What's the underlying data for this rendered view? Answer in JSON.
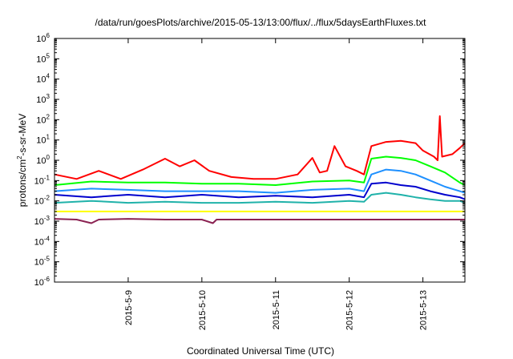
{
  "chart_data": {
    "type": "line",
    "title": "/data/run/goesPlots/archive/2015-05-13/13:00/flux/../flux/5daysEarthFluxes.txt",
    "xlabel": "Coordinated Universal Time (UTC)",
    "ylabel_parts": [
      "protons/cm",
      "2",
      "-s-sr-MeV"
    ],
    "ylabel": "protons/cm2-s-sr-MeV",
    "yscale": "log",
    "ylim": [
      1e-06,
      1000000.0
    ],
    "xlim": [
      0,
      5.57
    ],
    "x_unit": "days after 2015-05-08 00:00 UTC",
    "xticks": [
      {
        "x": 1,
        "label": "2015-5-9"
      },
      {
        "x": 2,
        "label": "2015-5-10"
      },
      {
        "x": 3,
        "label": "2015-5-11"
      },
      {
        "x": 4,
        "label": "2015-5-12"
      },
      {
        "x": 5,
        "label": "2015-5-13"
      }
    ],
    "yticks": [
      {
        "exp": -6
      },
      {
        "exp": -5
      },
      {
        "exp": -4
      },
      {
        "exp": -3
      },
      {
        "exp": -2
      },
      {
        "exp": -1
      },
      {
        "exp": 0
      },
      {
        "exp": 1
      },
      {
        "exp": 2
      },
      {
        "exp": 3
      },
      {
        "exp": 4
      },
      {
        "exp": 5
      },
      {
        "exp": 6
      }
    ],
    "series": [
      {
        "color": "#ff0000",
        "width": 2,
        "points": [
          [
            0.0,
            0.2
          ],
          [
            0.3,
            0.12
          ],
          [
            0.6,
            0.3
          ],
          [
            0.9,
            0.12
          ],
          [
            1.2,
            0.35
          ],
          [
            1.5,
            1.2
          ],
          [
            1.7,
            0.5
          ],
          [
            1.9,
            1.0
          ],
          [
            2.1,
            0.3
          ],
          [
            2.4,
            0.15
          ],
          [
            2.7,
            0.12
          ],
          [
            3.0,
            0.12
          ],
          [
            3.3,
            0.2
          ],
          [
            3.5,
            1.3
          ],
          [
            3.6,
            0.25
          ],
          [
            3.7,
            0.3
          ],
          [
            3.8,
            5.0
          ],
          [
            3.95,
            0.5
          ],
          [
            4.1,
            0.3
          ],
          [
            4.2,
            0.2
          ],
          [
            4.3,
            5.0
          ],
          [
            4.5,
            8.0
          ],
          [
            4.7,
            9.0
          ],
          [
            4.9,
            7.0
          ],
          [
            5.0,
            3.0
          ],
          [
            5.15,
            1.5
          ],
          [
            5.2,
            1.0
          ],
          [
            5.23,
            150
          ],
          [
            5.26,
            1.5
          ],
          [
            5.4,
            2.0
          ],
          [
            5.5,
            4.0
          ],
          [
            5.57,
            7.0
          ]
        ]
      },
      {
        "color": "#00ff00",
        "width": 2,
        "points": [
          [
            0.0,
            0.06
          ],
          [
            0.5,
            0.09
          ],
          [
            1.0,
            0.08
          ],
          [
            1.5,
            0.08
          ],
          [
            2.0,
            0.07
          ],
          [
            2.5,
            0.07
          ],
          [
            3.0,
            0.06
          ],
          [
            3.5,
            0.09
          ],
          [
            4.0,
            0.1
          ],
          [
            4.2,
            0.08
          ],
          [
            4.3,
            1.2
          ],
          [
            4.5,
            1.5
          ],
          [
            4.7,
            1.3
          ],
          [
            4.9,
            1.0
          ],
          [
            5.1,
            0.5
          ],
          [
            5.3,
            0.25
          ],
          [
            5.5,
            0.08
          ],
          [
            5.57,
            0.06
          ]
        ]
      },
      {
        "color": "#1e90ff",
        "width": 2,
        "points": [
          [
            0.0,
            0.03
          ],
          [
            0.5,
            0.04
          ],
          [
            1.0,
            0.035
          ],
          [
            1.5,
            0.03
          ],
          [
            2.0,
            0.03
          ],
          [
            2.5,
            0.03
          ],
          [
            3.0,
            0.025
          ],
          [
            3.5,
            0.035
          ],
          [
            4.0,
            0.04
          ],
          [
            4.2,
            0.03
          ],
          [
            4.3,
            0.2
          ],
          [
            4.5,
            0.35
          ],
          [
            4.7,
            0.3
          ],
          [
            4.9,
            0.2
          ],
          [
            5.1,
            0.1
          ],
          [
            5.3,
            0.05
          ],
          [
            5.5,
            0.03
          ],
          [
            5.57,
            0.025
          ]
        ]
      },
      {
        "color": "#0000cd",
        "width": 2,
        "points": [
          [
            0.0,
            0.02
          ],
          [
            0.5,
            0.015
          ],
          [
            1.0,
            0.02
          ],
          [
            1.5,
            0.015
          ],
          [
            2.0,
            0.02
          ],
          [
            2.5,
            0.015
          ],
          [
            3.0,
            0.018
          ],
          [
            3.5,
            0.015
          ],
          [
            4.0,
            0.02
          ],
          [
            4.2,
            0.015
          ],
          [
            4.3,
            0.07
          ],
          [
            4.5,
            0.08
          ],
          [
            4.7,
            0.06
          ],
          [
            4.9,
            0.05
          ],
          [
            5.1,
            0.03
          ],
          [
            5.3,
            0.02
          ],
          [
            5.5,
            0.015
          ],
          [
            5.57,
            0.012
          ]
        ]
      },
      {
        "color": "#20b2aa",
        "width": 2,
        "points": [
          [
            0.0,
            0.008
          ],
          [
            0.5,
            0.01
          ],
          [
            1.0,
            0.008
          ],
          [
            1.5,
            0.009
          ],
          [
            2.0,
            0.008
          ],
          [
            2.5,
            0.008
          ],
          [
            3.0,
            0.009
          ],
          [
            3.5,
            0.008
          ],
          [
            4.0,
            0.01
          ],
          [
            4.2,
            0.009
          ],
          [
            4.3,
            0.02
          ],
          [
            4.5,
            0.025
          ],
          [
            4.7,
            0.02
          ],
          [
            4.9,
            0.015
          ],
          [
            5.1,
            0.012
          ],
          [
            5.3,
            0.01
          ],
          [
            5.5,
            0.01
          ],
          [
            5.57,
            0.008
          ]
        ]
      },
      {
        "color": "#ffff00",
        "width": 2,
        "points": [
          [
            0.0,
            0.003
          ],
          [
            0.5,
            0.003
          ],
          [
            1.0,
            0.003
          ],
          [
            1.5,
            0.003
          ],
          [
            2.0,
            0.003
          ],
          [
            2.5,
            0.003
          ],
          [
            3.0,
            0.003
          ],
          [
            3.5,
            0.003
          ],
          [
            4.0,
            0.003
          ],
          [
            4.5,
            0.003
          ],
          [
            5.0,
            0.003
          ],
          [
            5.57,
            0.003
          ]
        ]
      },
      {
        "color": "#8b2252",
        "width": 2,
        "points": [
          [
            0.0,
            0.0013
          ],
          [
            0.3,
            0.0012
          ],
          [
            0.5,
            0.0008
          ],
          [
            0.6,
            0.0012
          ],
          [
            1.0,
            0.0013
          ],
          [
            1.5,
            0.0012
          ],
          [
            2.0,
            0.0012
          ],
          [
            2.15,
            0.0008
          ],
          [
            2.2,
            0.0012
          ],
          [
            2.5,
            0.0012
          ],
          [
            3.0,
            0.0012
          ],
          [
            3.5,
            0.0012
          ],
          [
            4.0,
            0.0012
          ],
          [
            4.5,
            0.0012
          ],
          [
            5.0,
            0.0012
          ],
          [
            5.57,
            0.0012
          ]
        ]
      }
    ]
  }
}
